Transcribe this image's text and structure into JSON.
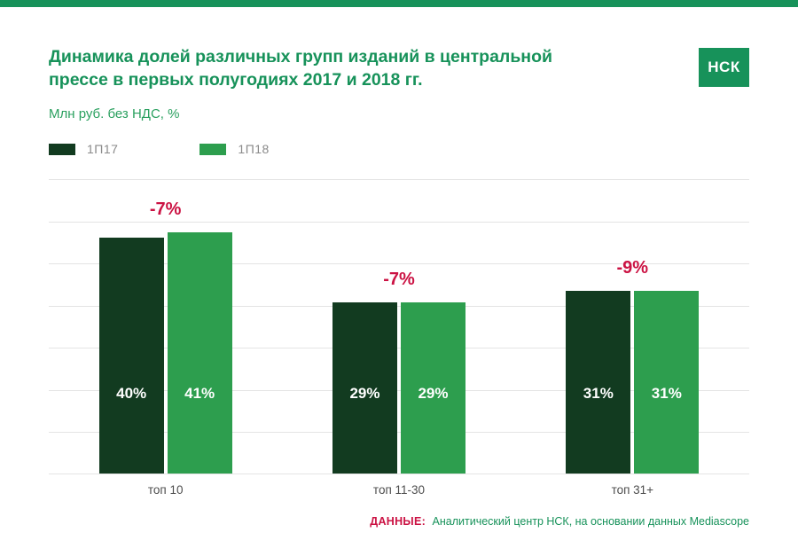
{
  "page": {
    "title_lines": [
      "Динамика долей различных групп изданий в центральной",
      "прессе в первых полугодиях 2017 и 2018 гг."
    ],
    "subtitle": "Млн руб. без НДС, %",
    "logo": "НСК"
  },
  "legend": [
    {
      "label": "1П17",
      "color": "#123b20"
    },
    {
      "label": "1П18",
      "color": "#2d9e4e"
    }
  ],
  "footer": {
    "label": "ДАННЫЕ:",
    "text": "Аналитический центр НСК, на основании данных Mediascope"
  },
  "chart_data": {
    "type": "bar",
    "title": "Динамика долей различных групп изданий в центральной прессе в первых полугодиях 2017 и 2018 гг.",
    "subtitle": "Млн руб. без НДС, %",
    "categories": [
      "топ 10",
      "топ 11-30",
      "топ 31+"
    ],
    "series": [
      {
        "name": "1П17",
        "values": [
          40,
          29,
          31
        ],
        "color": "#123b20"
      },
      {
        "name": "1П18",
        "values": [
          41,
          29,
          31
        ],
        "color": "#2d9e4e"
      }
    ],
    "annotations": [
      "-7%",
      "-7%",
      "-9%"
    ],
    "value_suffix": "%",
    "ylim": [
      0,
      50
    ],
    "grid": true,
    "gridline_count": 8,
    "legend_position": "top-left"
  },
  "colors": {
    "accent_green": "#17925a",
    "bar_dark_green": "#123b20",
    "bar_light_green": "#2d9e4e",
    "annotation_crimson": "#cb1243",
    "gridline": "#e4e4e4"
  }
}
